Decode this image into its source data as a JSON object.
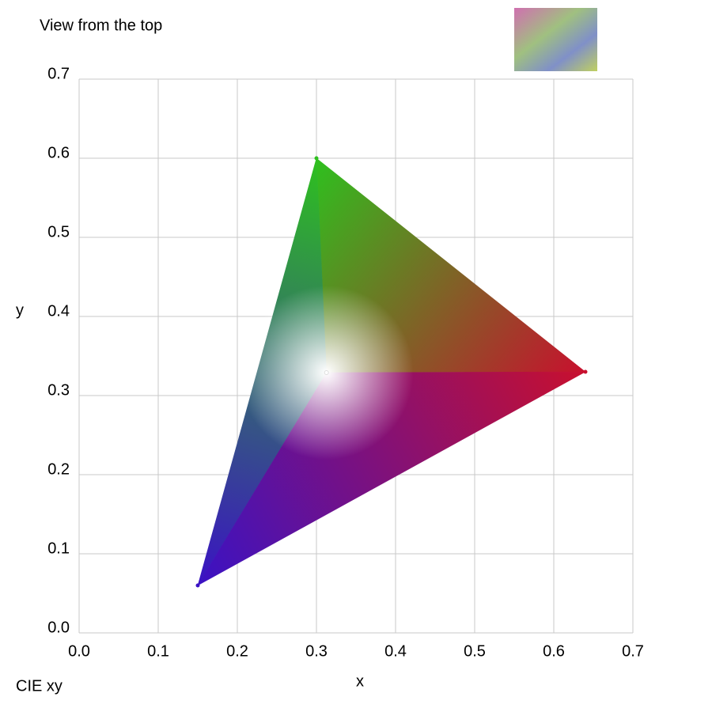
{
  "chart_data": {
    "type": "scatter",
    "title": "View from the top",
    "subtitle": "CIE xy",
    "x_label": "x",
    "y_label": "y",
    "x": [
      0.64,
      0.3,
      0.15,
      0.3127
    ],
    "values": [
      0.33,
      0.6,
      0.06,
      0.329
    ],
    "colors": [
      "#c8102e",
      "#2ec01e",
      "#3a12c4",
      "#ffffff"
    ],
    "xlim": [
      0,
      0.7
    ],
    "ylim": [
      0,
      0.7
    ],
    "xticks": [
      {
        "value": 0,
        "label": "0.0"
      },
      0.1,
      0.2,
      0.3,
      0.4,
      0.5,
      0.6,
      0.7
    ],
    "yticks": [
      {
        "value": 0,
        "label": "0.0"
      },
      0.1,
      0.2,
      0.3,
      0.4,
      0.5,
      0.6,
      0.7
    ],
    "grid": true
  }
}
